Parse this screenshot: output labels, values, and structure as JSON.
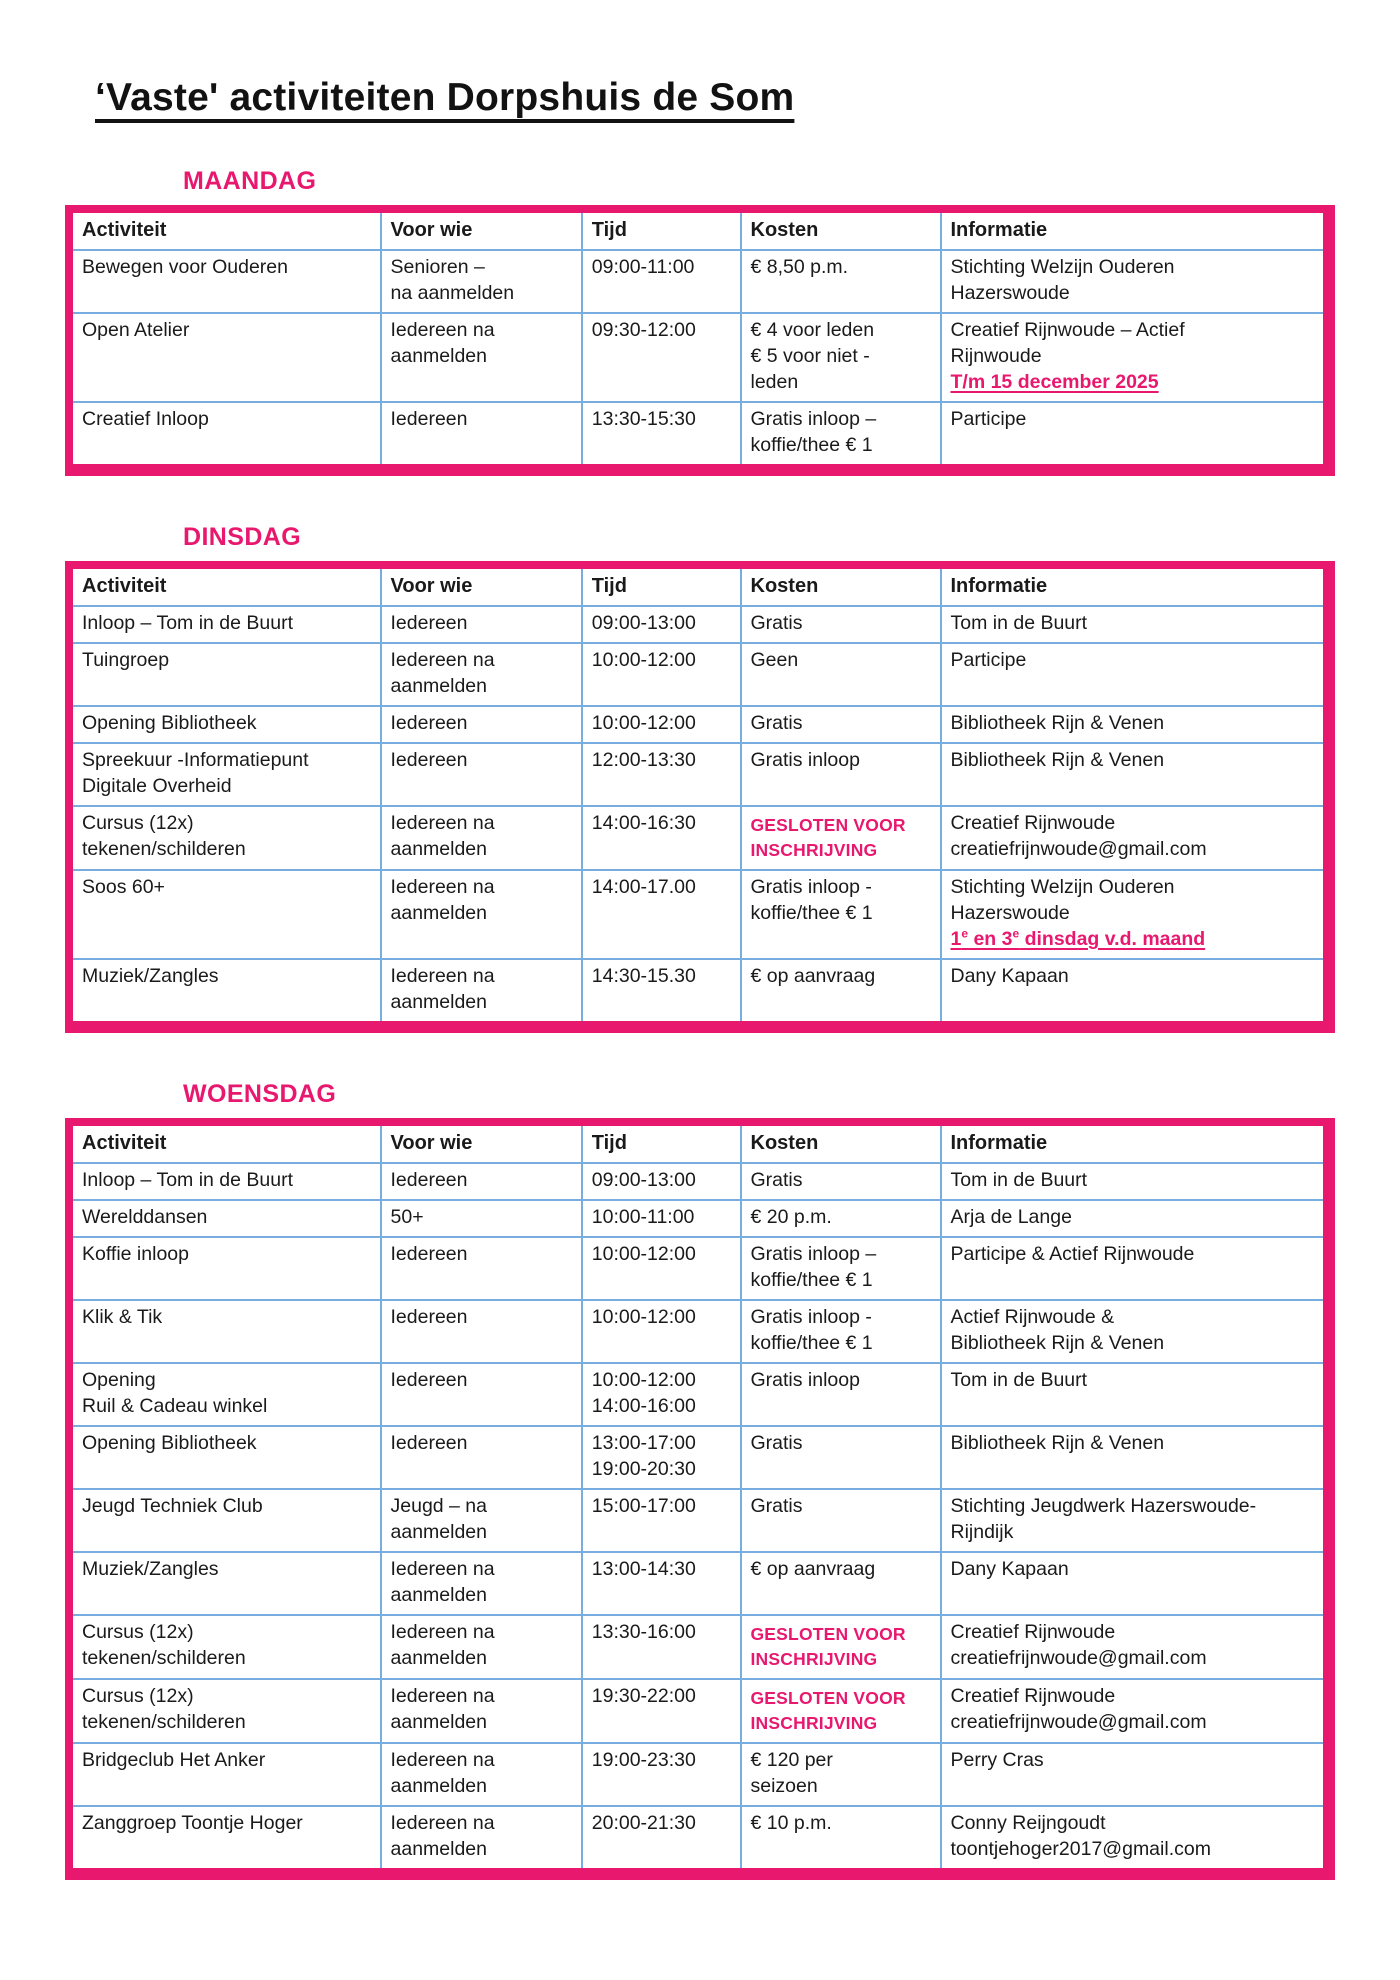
{
  "title": "‘Vaste' activiteiten Dorpshuis de Som",
  "colors": {
    "accent_pink": "#e8186f",
    "table_inner_border_blue": "#77addf",
    "text_black": "#161616"
  },
  "columns": [
    "Activiteit",
    "Voor wie",
    "Tijd",
    "Kosten",
    "Informatie"
  ],
  "sections": [
    {
      "day": "MAANDAG",
      "rows": [
        {
          "activiteit": "Bewegen voor Ouderen",
          "voorwie": "Senioren –\nna aanmelden",
          "tijd": "09:00-11:00",
          "kosten": "€ 8,50 p.m.",
          "info": "Stichting Welzijn Ouderen\nHazerswoude"
        },
        {
          "activiteit": "Open Atelier",
          "voorwie": "Iedereen na\naanmelden",
          "tijd": "09:30-12:00",
          "kosten": "€ 4 voor leden\n€ 5 voor niet -\nleden",
          "info": "Creatief Rijnwoude – Actief\nRijnwoude",
          "info_highlight": "T/m 15 december 2025"
        },
        {
          "activiteit": "Creatief Inloop",
          "voorwie": "Iedereen",
          "tijd": "13:30-15:30",
          "kosten": "Gratis inloop –\nkoffie/thee € 1",
          "info": "Participe"
        }
      ]
    },
    {
      "day": "DINSDAG",
      "rows": [
        {
          "activiteit": "Inloop – Tom in de Buurt",
          "voorwie": "Iedereen",
          "tijd": "09:00-13:00",
          "kosten": "Gratis",
          "info": "Tom in de Buurt"
        },
        {
          "activiteit": "Tuingroep",
          "voorwie": "Iedereen na\naanmelden",
          "tijd": "10:00-12:00",
          "kosten": "Geen",
          "info": "Participe"
        },
        {
          "activiteit": "Opening Bibliotheek",
          "voorwie": "Iedereen",
          "tijd": "10:00-12:00",
          "kosten": "Gratis",
          "info": "Bibliotheek Rijn & Venen"
        },
        {
          "activiteit": "Spreekuur -Informatiepunt\nDigitale Overheid",
          "voorwie": "Iedereen",
          "tijd": "12:00-13:30",
          "kosten": "Gratis inloop",
          "info": "Bibliotheek Rijn & Venen"
        },
        {
          "activiteit": "Cursus (12x)\ntekenen/schilderen",
          "voorwie": "Iedereen na\naanmelden",
          "tijd": "14:00-16:30",
          "kosten_highlight": "GESLOTEN VOOR\nINSCHRIJVING",
          "info": "Creatief Rijnwoude\ncreatiefrijnwoude@gmail.com"
        },
        {
          "activiteit": "Soos 60+",
          "voorwie": "Iedereen na\naanmelden",
          "tijd": "14:00-17.00",
          "kosten": "Gratis inloop -\nkoffie/thee € 1",
          "info": "Stichting Welzijn Ouderen\nHazerswoude",
          "info_highlight": "1e en 3e dinsdag v.d. maand"
        },
        {
          "activiteit": "Muziek/Zangles",
          "voorwie": "Iedereen na\naanmelden",
          "tijd": "14:30-15.30",
          "kosten": "€ op aanvraag",
          "info": "Dany Kapaan"
        }
      ]
    },
    {
      "day": "WOENSDAG",
      "rows": [
        {
          "activiteit": "Inloop – Tom in de Buurt",
          "voorwie": "Iedereen",
          "tijd": "09:00-13:00",
          "kosten": "Gratis",
          "info": "Tom in de Buurt"
        },
        {
          "activiteit": "Werelddansen",
          "voorwie": "50+",
          "tijd": "10:00-11:00",
          "kosten": "€ 20 p.m.",
          "info": "Arja de Lange"
        },
        {
          "activiteit": "Koffie inloop",
          "voorwie": "Iedereen",
          "tijd": "10:00-12:00",
          "kosten": "Gratis inloop –\nkoffie/thee € 1",
          "info": "Participe & Actief Rijnwoude"
        },
        {
          "activiteit": "Klik & Tik",
          "voorwie": "Iedereen",
          "tijd": "10:00-12:00",
          "kosten": "Gratis inloop -\nkoffie/thee € 1",
          "info": "Actief Rijnwoude &\nBibliotheek Rijn & Venen"
        },
        {
          "activiteit": "Opening\nRuil & Cadeau winkel",
          "voorwie": "Iedereen",
          "tijd": "10:00-12:00\n14:00-16:00",
          "kosten": "Gratis inloop",
          "info": "Tom in de Buurt"
        },
        {
          "activiteit": "Opening Bibliotheek",
          "voorwie": "Iedereen",
          "tijd": "13:00-17:00\n19:00-20:30",
          "kosten": "Gratis",
          "info": "Bibliotheek Rijn & Venen"
        },
        {
          "activiteit": "Jeugd Techniek Club",
          "voorwie": "Jeugd – na\naanmelden",
          "tijd": "15:00-17:00",
          "kosten": "Gratis",
          "info": "Stichting Jeugdwerk Hazerswoude-\nRijndijk"
        },
        {
          "activiteit": "Muziek/Zangles",
          "voorwie": "Iedereen na\naanmelden",
          "tijd": "13:00-14:30",
          "kosten": "€ op aanvraag",
          "info": "Dany Kapaan"
        },
        {
          "activiteit": "Cursus (12x)\ntekenen/schilderen",
          "voorwie": "Iedereen na\naanmelden",
          "tijd": "13:30-16:00",
          "kosten_highlight": "GESLOTEN VOOR\nINSCHRIJVING",
          "info": "Creatief Rijnwoude\ncreatiefrijnwoude@gmail.com"
        },
        {
          "activiteit": "Cursus (12x)\ntekenen/schilderen",
          "voorwie": "Iedereen na\naanmelden",
          "tijd": "19:30-22:00",
          "kosten_highlight": "GESLOTEN VOOR\nINSCHRIJVING",
          "info": "Creatief Rijnwoude\ncreatiefrijnwoude@gmail.com"
        },
        {
          "activiteit": "Bridgeclub Het Anker",
          "voorwie": "Iedereen na\naanmelden",
          "tijd": "19:00-23:30",
          "kosten": "€ 120 per\nseizoen",
          "info": "Perry Cras"
        },
        {
          "activiteit": "Zanggroep Toontje Hoger",
          "voorwie": "Iedereen na\naanmelden",
          "tijd": "20:00-21:30",
          "kosten": "€ 10 p.m.",
          "info": "Conny Reijngoudt\ntoontjehoger2017@gmail.com"
        }
      ]
    }
  ]
}
